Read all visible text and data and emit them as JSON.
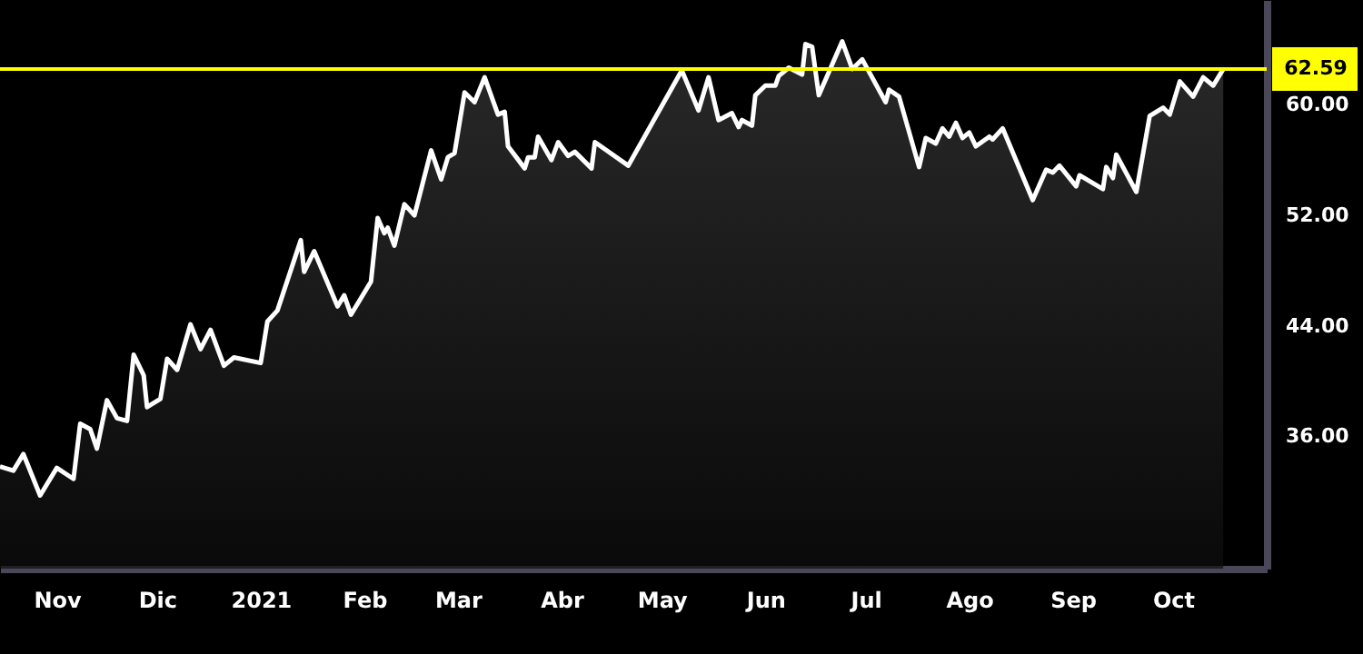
{
  "chart_data": {
    "type": "area",
    "color": "#ffffff",
    "x": [
      "2020-10-15",
      "2020-10-19",
      "2020-10-22",
      "2020-10-27",
      "2020-11-01",
      "2020-11-06",
      "2020-11-08",
      "2020-11-11",
      "2020-11-13",
      "2020-11-16",
      "2020-11-19",
      "2020-11-22",
      "2020-11-24",
      "2020-11-27",
      "2020-11-28",
      "2020-12-02",
      "2020-12-04",
      "2020-12-07",
      "2020-12-11",
      "2020-12-14",
      "2020-12-17",
      "2020-12-21",
      "2020-12-24",
      "2021-01-01",
      "2021-01-03",
      "2021-01-06",
      "2021-01-13",
      "2021-01-14",
      "2021-01-17",
      "2021-01-24",
      "2021-01-26",
      "2021-01-28",
      "2021-02-03",
      "2021-02-05",
      "2021-02-07",
      "2021-02-08",
      "2021-02-10",
      "2021-02-13",
      "2021-02-16",
      "2021-02-21",
      "2021-02-24",
      "2021-02-26",
      "2021-02-28",
      "2021-03-03",
      "2021-03-06",
      "2021-03-09",
      "2021-03-13",
      "2021-03-15",
      "2021-03-16",
      "2021-03-21",
      "2021-03-22",
      "2021-03-24",
      "2021-03-25",
      "2021-03-29",
      "2021-03-31",
      "2021-04-03",
      "2021-04-05",
      "2021-04-10",
      "2021-04-11",
      "2021-04-21",
      "2021-05-07",
      "2021-05-12",
      "2021-05-15",
      "2021-05-18",
      "2021-05-22",
      "2021-05-24",
      "2021-05-25",
      "2021-05-28",
      "2021-05-29",
      "2021-06-01",
      "2021-06-04",
      "2021-06-05",
      "2021-06-08",
      "2021-06-12",
      "2021-06-13",
      "2021-06-15",
      "2021-06-17",
      "2021-06-24",
      "2021-06-27",
      "2021-06-30",
      "2021-07-07",
      "2021-07-08",
      "2021-07-11",
      "2021-07-17",
      "2021-07-19",
      "2021-07-22",
      "2021-07-24",
      "2021-07-26",
      "2021-07-28",
      "2021-07-30",
      "2021-08-01",
      "2021-08-03",
      "2021-08-07",
      "2021-08-08",
      "2021-08-11",
      "2021-08-20",
      "2021-08-24",
      "2021-08-26",
      "2021-08-28",
      "2021-09-02",
      "2021-09-03",
      "2021-09-10",
      "2021-09-11",
      "2021-09-13",
      "2021-09-14",
      "2021-09-20",
      "2021-09-24",
      "2021-09-28",
      "2021-09-30",
      "2021-10-03",
      "2021-10-07",
      "2021-10-10",
      "2021-10-13",
      "2021-10-16"
    ],
    "values": [
      33.8,
      33.5,
      34.7,
      31.7,
      33.7,
      32.9,
      36.9,
      36.5,
      35.1,
      38.6,
      37.3,
      37.1,
      41.9,
      40.4,
      38.1,
      38.7,
      41.6,
      40.8,
      44.1,
      42.3,
      43.7,
      41.1,
      41.7,
      41.3,
      44.3,
      45.1,
      50.2,
      47.9,
      49.4,
      45.4,
      46.2,
      44.8,
      47.2,
      51.8,
      50.7,
      51.1,
      49.8,
      52.8,
      52.0,
      56.7,
      54.6,
      56.2,
      56.5,
      60.9,
      60.2,
      62.0,
      59.3,
      59.5,
      57.0,
      55.4,
      56.2,
      56.2,
      57.7,
      56.0,
      57.3,
      56.3,
      56.6,
      55.4,
      57.3,
      55.6,
      62.5,
      59.6,
      62.0,
      58.9,
      59.4,
      58.4,
      58.9,
      58.5,
      60.7,
      61.4,
      61.4,
      62.1,
      62.7,
      62.2,
      64.4,
      64.2,
      60.7,
      64.6,
      62.6,
      63.3,
      60.2,
      61.1,
      60.6,
      55.5,
      57.6,
      57.2,
      58.3,
      57.7,
      58.7,
      57.6,
      58.0,
      57.0,
      57.7,
      57.5,
      58.3,
      53.1,
      55.3,
      55.1,
      55.6,
      54.1,
      54.9,
      53.9,
      55.5,
      54.7,
      56.4,
      53.7,
      59.2,
      59.8,
      59.3,
      61.7,
      60.6,
      62.0,
      61.4,
      62.59
    ],
    "xlim": [
      "2020-10-15",
      "2021-10-29"
    ],
    "xticks": [
      {
        "value": "2020-11-01",
        "label": "Nov"
      },
      {
        "value": "2020-12-01",
        "label": "Dic"
      },
      {
        "value": "2021-01-01",
        "label": "2021"
      },
      {
        "value": "2021-02-01",
        "label": "Feb"
      },
      {
        "value": "2021-03-01",
        "label": "Mar"
      },
      {
        "value": "2021-04-01",
        "label": "Abr"
      },
      {
        "value": "2021-05-01",
        "label": "May"
      },
      {
        "value": "2021-06-01",
        "label": "Jun"
      },
      {
        "value": "2021-07-01",
        "label": "Jul"
      },
      {
        "value": "2021-08-01",
        "label": "Ago"
      },
      {
        "value": "2021-09-01",
        "label": "Sep"
      },
      {
        "value": "2021-10-01",
        "label": "Oct"
      }
    ],
    "ylim": [
      26.4,
      67.6
    ],
    "yticks": [
      {
        "value": 36,
        "label": "36.00"
      },
      {
        "value": 44,
        "label": "44.00"
      },
      {
        "value": 52,
        "label": "52.00"
      },
      {
        "value": 60,
        "label": "60.00"
      }
    ],
    "ref_lines": [
      {
        "axis": "y",
        "value": 62.59,
        "label": "62.59",
        "color": "#ffff00"
      }
    ],
    "grid": false
  }
}
